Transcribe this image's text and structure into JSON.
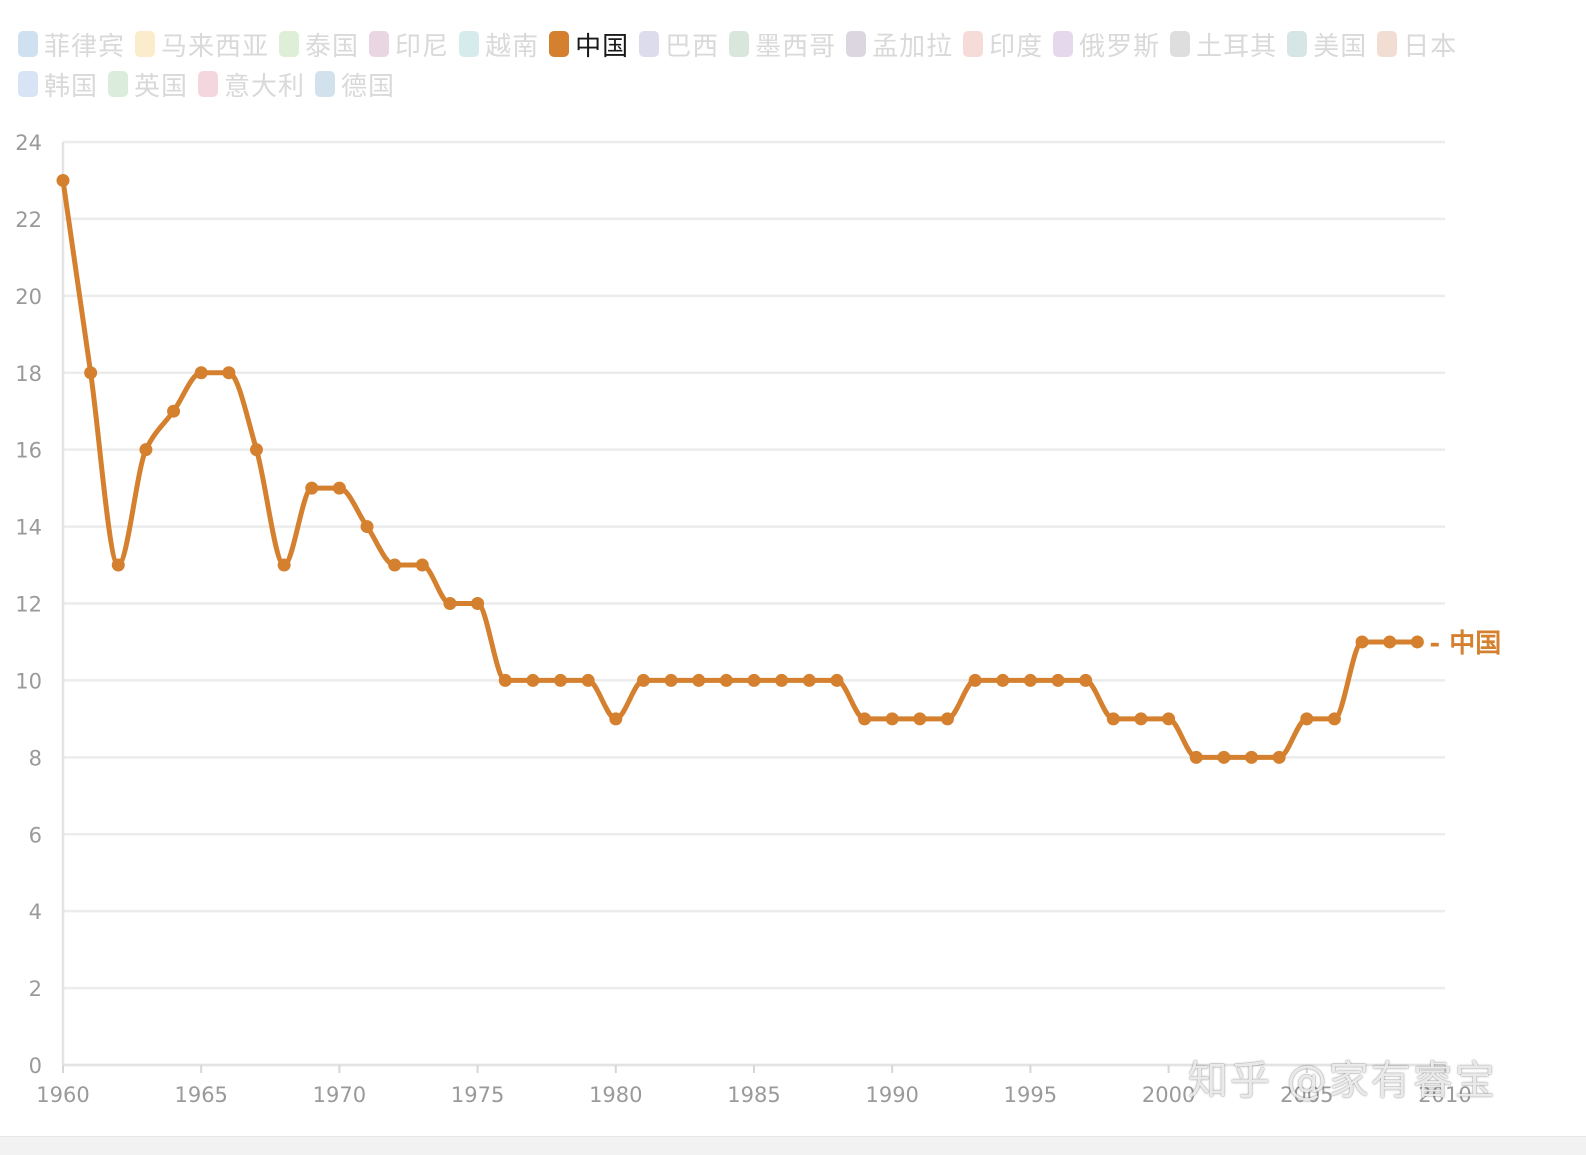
{
  "legend": {
    "items": [
      {
        "label": "菲律宾",
        "color": "#cfe0f0"
      },
      {
        "label": "马来西亚",
        "color": "#fbeccc"
      },
      {
        "label": "泰国",
        "color": "#dfeed6"
      },
      {
        "label": "印尼",
        "color": "#ead6e2"
      },
      {
        "label": "越南",
        "color": "#d6ecec"
      },
      {
        "label": "中国",
        "color": "#d4802f",
        "active": true
      },
      {
        "label": "巴西",
        "color": "#dcdcec"
      },
      {
        "label": "墨西哥",
        "color": "#d8e6dc"
      },
      {
        "label": "孟加拉",
        "color": "#dcd6e0"
      },
      {
        "label": "印度",
        "color": "#f6dcd8"
      },
      {
        "label": "俄罗斯",
        "color": "#e6d8ec"
      },
      {
        "label": "土耳其",
        "color": "#dedede"
      },
      {
        "label": "美国",
        "color": "#d6e6e6"
      },
      {
        "label": "日本",
        "color": "#f2ddd2"
      },
      {
        "label": "韩国",
        "color": "#d8e4f6"
      },
      {
        "label": "英国",
        "color": "#dcecdc"
      },
      {
        "label": "意大利",
        "color": "#f4d6de"
      },
      {
        "label": "德国",
        "color": "#d2e2ec"
      }
    ]
  },
  "chart_data": {
    "type": "line",
    "title": "",
    "xlabel": "",
    "ylabel": "",
    "xlim": [
      1960,
      2010
    ],
    "ylim": [
      0,
      24
    ],
    "x_ticks": [
      1960,
      1965,
      1970,
      1975,
      1980,
      1985,
      1990,
      1995,
      2000,
      2005,
      2010
    ],
    "y_ticks": [
      0,
      2,
      4,
      6,
      8,
      10,
      12,
      14,
      16,
      18,
      20,
      22,
      24
    ],
    "grid": true,
    "series": [
      {
        "name": "中国",
        "color": "#d4802f",
        "end_label": "- 中国",
        "x": [
          1960,
          1961,
          1962,
          1963,
          1964,
          1965,
          1966,
          1967,
          1968,
          1969,
          1970,
          1971,
          1972,
          1973,
          1974,
          1975,
          1976,
          1977,
          1978,
          1979,
          1980,
          1981,
          1982,
          1983,
          1984,
          1985,
          1986,
          1987,
          1988,
          1989,
          1990,
          1991,
          1992,
          1993,
          1994,
          1995,
          1996,
          1997,
          1998,
          1999,
          2000,
          2001,
          2002,
          2003,
          2004,
          2005,
          2006,
          2007,
          2008,
          2009
        ],
        "values": [
          23,
          18,
          13,
          16,
          17,
          18,
          18,
          16,
          13,
          15,
          15,
          14,
          13,
          13,
          12,
          12,
          10,
          10,
          10,
          10,
          9,
          10,
          10,
          10,
          10,
          10,
          10,
          10,
          10,
          9,
          9,
          9,
          9,
          10,
          10,
          10,
          10,
          10,
          9,
          9,
          9,
          8,
          8,
          8,
          8,
          9,
          9,
          11,
          11,
          11
        ]
      }
    ]
  },
  "watermark": {
    "text": "知乎 @家有睿宝"
  }
}
